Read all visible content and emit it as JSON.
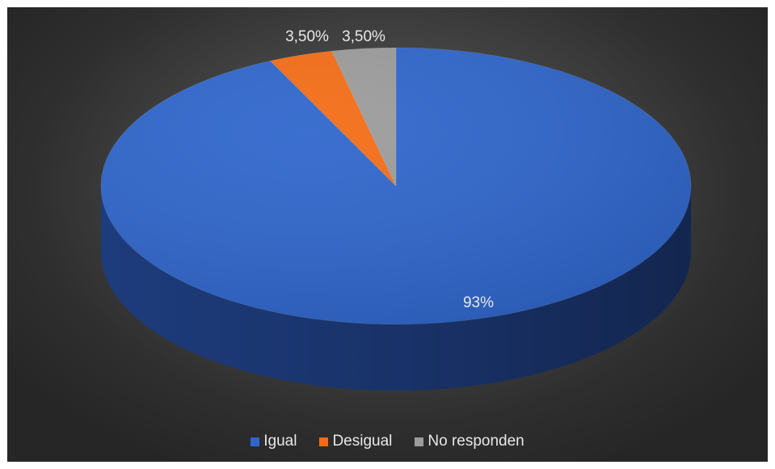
{
  "chart_data": {
    "type": "pie",
    "title": "",
    "categories": [
      "Igual",
      "Desigual",
      "No responden"
    ],
    "values": [
      93,
      3.5,
      3.5
    ],
    "data_labels": [
      "93%",
      "3,50%",
      "3,50%"
    ],
    "colors": [
      "#2f66cc",
      "#f46d16",
      "#9c9c9c"
    ],
    "side_colors": [
      "#1f3f83",
      "#a84a0e",
      "#6a6a6a"
    ],
    "legend_position": "bottom",
    "style": "3d"
  }
}
